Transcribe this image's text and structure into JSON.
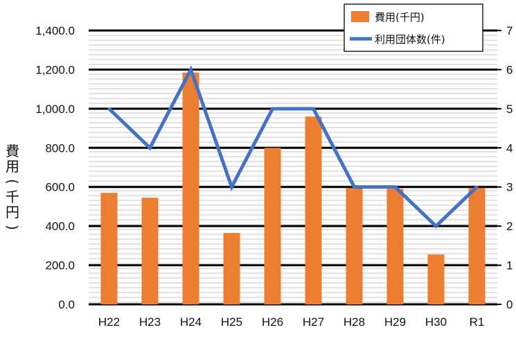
{
  "chart_data": {
    "type": "bar",
    "categories": [
      "H22",
      "H23",
      "H24",
      "H25",
      "H26",
      "H27",
      "H28",
      "H29",
      "H30",
      "R1"
    ],
    "series": [
      {
        "name": "費用(千円)",
        "type": "bar",
        "axis": "left",
        "color": "#ED7D31",
        "values": [
          570,
          545,
          1185,
          365,
          800,
          960,
          595,
          590,
          255,
          595
        ]
      },
      {
        "name": "利用団体数(件)",
        "type": "line",
        "axis": "right",
        "color": "#4472C4",
        "values": [
          5,
          4,
          6,
          3,
          5,
          5,
          3,
          3,
          2,
          3
        ]
      }
    ],
    "ylabel": "費用(千円)",
    "ylim": [
      0,
      1400
    ],
    "yticks": [
      "0.0",
      "200.0",
      "400.0",
      "600.0",
      "800.0",
      "1,000.0",
      "1,200.0",
      "1,400.0"
    ],
    "y2lim": [
      0,
      7
    ],
    "y2ticks": [
      "0",
      "1",
      "2",
      "3",
      "4",
      "5",
      "6",
      "7"
    ],
    "legend": "top-right",
    "grid": true
  }
}
